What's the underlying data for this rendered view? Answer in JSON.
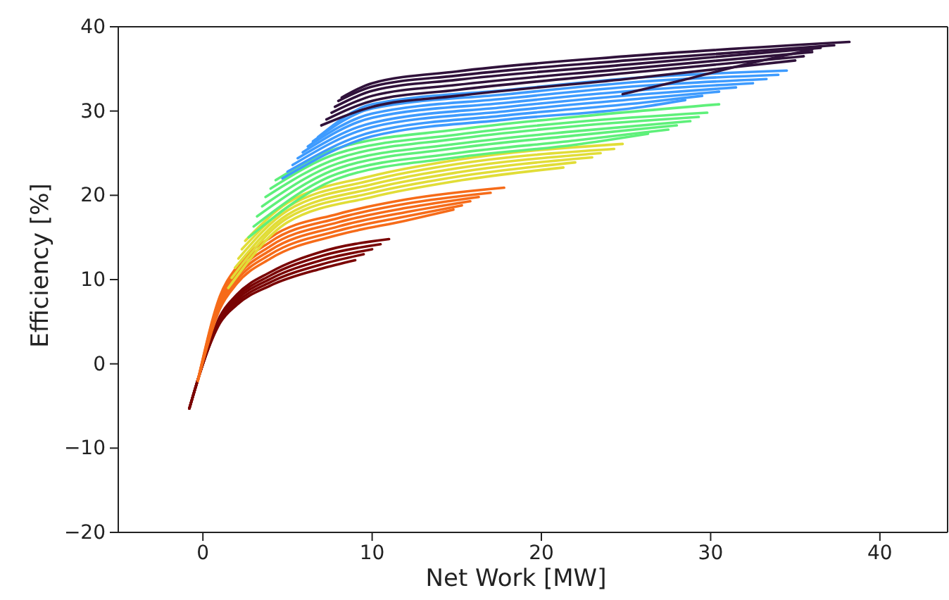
{
  "chart_data": {
    "type": "line",
    "xlabel": "Net Work [MW]",
    "ylabel": "Efficiency [%]",
    "xlim": [
      -5,
      44
    ],
    "ylim": [
      -20,
      40
    ],
    "xticks": [
      0,
      10,
      20,
      30,
      40
    ],
    "yticks": [
      -20,
      -10,
      0,
      10,
      20,
      30,
      40
    ],
    "series": [
      {
        "color": "#7a0403",
        "x": [
          -0.8,
          0,
          1,
          2,
          4,
          7,
          9
        ],
        "values": [
          -5.3,
          0,
          4.8,
          7,
          9.3,
          11.3,
          12.3
        ]
      },
      {
        "color": "#7a0403",
        "x": [
          -0.8,
          0,
          1,
          2,
          4,
          7,
          9.5
        ],
        "values": [
          -5.3,
          0,
          5,
          7.3,
          9.7,
          11.8,
          13
        ]
      },
      {
        "color": "#7a0403",
        "x": [
          -0.8,
          0,
          1,
          2,
          4,
          7,
          10
        ],
        "values": [
          -5.3,
          0,
          5.2,
          7.6,
          10.1,
          12.3,
          13.6
        ]
      },
      {
        "color": "#7a0403",
        "x": [
          -0.8,
          0,
          1,
          2,
          4,
          7,
          10.5
        ],
        "values": [
          -5.3,
          0,
          5.4,
          7.9,
          10.5,
          12.8,
          14.2
        ]
      },
      {
        "color": "#7a0403",
        "x": [
          -0.8,
          0,
          1,
          2,
          4,
          7,
          11
        ],
        "values": [
          -5.3,
          0,
          5.6,
          8.2,
          10.9,
          13.3,
          14.8
        ]
      },
      {
        "color": "#f66b19",
        "x": [
          -0.3,
          1,
          2,
          4,
          8,
          12,
          14.8
        ],
        "values": [
          -2,
          6.5,
          9.5,
          12.5,
          15.3,
          17,
          18.3
        ]
      },
      {
        "color": "#f66b19",
        "x": [
          -0.3,
          1,
          2,
          4,
          8,
          12,
          15.3
        ],
        "values": [
          -2,
          6.8,
          9.9,
          13,
          15.8,
          17.5,
          18.8
        ]
      },
      {
        "color": "#f66b19",
        "x": [
          -0.3,
          1,
          2,
          4,
          8,
          12,
          15.8
        ],
        "values": [
          -2,
          7.1,
          10.3,
          13.5,
          16.3,
          18,
          19.3
        ]
      },
      {
        "color": "#f66b19",
        "x": [
          -0.3,
          1,
          2,
          4,
          8,
          12,
          16.3
        ],
        "values": [
          -2,
          7.4,
          10.7,
          14,
          16.8,
          18.5,
          19.8
        ]
      },
      {
        "color": "#f66b19",
        "x": [
          -0.3,
          1,
          2,
          4,
          8,
          12,
          17
        ],
        "values": [
          -2,
          7.7,
          11.1,
          14.5,
          17.3,
          19,
          20.3
        ]
      },
      {
        "color": "#f66b19",
        "x": [
          -0.3,
          1,
          2,
          4,
          8,
          12,
          17.8
        ],
        "values": [
          -2,
          8,
          11.5,
          15,
          17.8,
          19.5,
          20.9
        ]
      },
      {
        "color": "#e1dd37",
        "x": [
          1.5,
          5,
          10,
          15,
          21.3
        ],
        "values": [
          9,
          16.8,
          19.8,
          21.7,
          23.3
        ]
      },
      {
        "color": "#e1dd37",
        "x": [
          1.7,
          5,
          10,
          15,
          22
        ],
        "values": [
          10.2,
          17.3,
          20.3,
          22.2,
          23.9
        ]
      },
      {
        "color": "#e1dd37",
        "x": [
          1.9,
          5,
          10,
          15,
          23
        ],
        "values": [
          11.4,
          17.7,
          20.8,
          22.7,
          24.5
        ]
      },
      {
        "color": "#e1dd37",
        "x": [
          2.1,
          5,
          10,
          15,
          23.5
        ],
        "values": [
          12.5,
          18.2,
          21.3,
          23.2,
          25
        ]
      },
      {
        "color": "#e1dd37",
        "x": [
          2.3,
          5,
          10,
          15,
          24.3
        ],
        "values": [
          13.6,
          18.6,
          21.8,
          23.7,
          25.5
        ]
      },
      {
        "color": "#e1dd37",
        "x": [
          2.5,
          5,
          10,
          15,
          24.8
        ],
        "values": [
          14.6,
          19.1,
          22.3,
          24.2,
          26.1
        ]
      },
      {
        "color": "#5ef07a",
        "x": [
          2.7,
          8,
          15,
          22,
          26.3
        ],
        "values": [
          15,
          22,
          24.5,
          26,
          27.3
        ]
      },
      {
        "color": "#5ef07a",
        "x": [
          3,
          8,
          15,
          22,
          27.5
        ],
        "values": [
          16.3,
          22.6,
          25,
          26.5,
          27.8
        ]
      },
      {
        "color": "#5ef07a",
        "x": [
          3.2,
          8,
          15,
          22,
          28
        ],
        "values": [
          17.5,
          23.2,
          25.6,
          27.1,
          28.3
        ]
      },
      {
        "color": "#5ef07a",
        "x": [
          3.5,
          8,
          15,
          22,
          28.8
        ],
        "values": [
          18.7,
          23.8,
          26.1,
          27.6,
          28.8
        ]
      },
      {
        "color": "#5ef07a",
        "x": [
          3.7,
          8,
          15,
          22,
          29.3
        ],
        "values": [
          19.8,
          24.4,
          26.7,
          28.2,
          29.3
        ]
      },
      {
        "color": "#5ef07a",
        "x": [
          4,
          8,
          15,
          22,
          29.8
        ],
        "values": [
          20.8,
          25,
          27.2,
          28.7,
          29.8
        ]
      },
      {
        "color": "#5ef07a",
        "x": [
          4.3,
          8,
          15,
          22,
          30.5
        ],
        "values": [
          21.8,
          25.6,
          27.8,
          29.3,
          30.8
        ]
      },
      {
        "color": "#3e9bfe",
        "x": [
          4.7,
          10,
          18,
          26,
          28.5
        ],
        "values": [
          22,
          27,
          29,
          30.5,
          31.3
        ]
      },
      {
        "color": "#3e9bfe",
        "x": [
          5,
          10,
          18,
          26,
          29.5
        ],
        "values": [
          22.8,
          27.5,
          29.5,
          31,
          31.8
        ]
      },
      {
        "color": "#3e9bfe",
        "x": [
          5.3,
          10,
          18,
          26,
          30.5
        ],
        "values": [
          23.6,
          28.1,
          30,
          31.5,
          32.3
        ]
      },
      {
        "color": "#3e9bfe",
        "x": [
          5.6,
          10,
          18,
          26,
          31.5
        ],
        "values": [
          24.4,
          28.6,
          30.5,
          32,
          32.8
        ]
      },
      {
        "color": "#3e9bfe",
        "x": [
          5.9,
          10,
          18,
          26,
          32.5
        ],
        "values": [
          25.1,
          29.2,
          31,
          32.5,
          33.3
        ]
      },
      {
        "color": "#3e9bfe",
        "x": [
          6.2,
          10,
          18,
          26,
          33.3
        ],
        "values": [
          25.8,
          29.7,
          31.5,
          33,
          33.8
        ]
      },
      {
        "color": "#3e9bfe",
        "x": [
          6.5,
          10,
          18,
          26,
          34
        ],
        "values": [
          26.4,
          30.3,
          32,
          33.5,
          34.3
        ]
      },
      {
        "color": "#3e9bfe",
        "x": [
          6.8,
          10,
          18,
          26,
          34.5
        ],
        "values": [
          26.9,
          30.8,
          32.5,
          34,
          34.8
        ]
      },
      {
        "color": "#30123b",
        "x": [
          7,
          10,
          15,
          25,
          35
        ],
        "values": [
          28.3,
          30.5,
          31.8,
          33.8,
          36
        ]
      },
      {
        "color": "#30123b",
        "x": [
          7.3,
          10,
          15,
          25,
          35.5
        ],
        "values": [
          29,
          31.2,
          32.5,
          34.5,
          36.5
        ]
      },
      {
        "color": "#30123b",
        "x": [
          7.6,
          10,
          15,
          25,
          36
        ],
        "values": [
          29.8,
          31.8,
          33.1,
          35,
          37
        ]
      },
      {
        "color": "#30123b",
        "x": [
          7.8,
          10,
          15,
          25,
          36.5
        ],
        "values": [
          30.5,
          32.4,
          33.7,
          35.5,
          37.5
        ]
      },
      {
        "color": "#30123b",
        "x": [
          8,
          10,
          15,
          25,
          37.3
        ],
        "values": [
          31.2,
          32.9,
          34.2,
          36,
          37.8
        ]
      },
      {
        "color": "#30123b",
        "x": [
          8.2,
          10,
          15,
          25,
          38.2
        ],
        "values": [
          31.6,
          33.3,
          34.7,
          36.5,
          38.2
        ]
      },
      {
        "color": "#30123b",
        "x": [
          24.8,
          28,
          32,
          36
        ],
        "values": [
          32,
          33.5,
          35.5,
          37.3
        ]
      }
    ]
  }
}
